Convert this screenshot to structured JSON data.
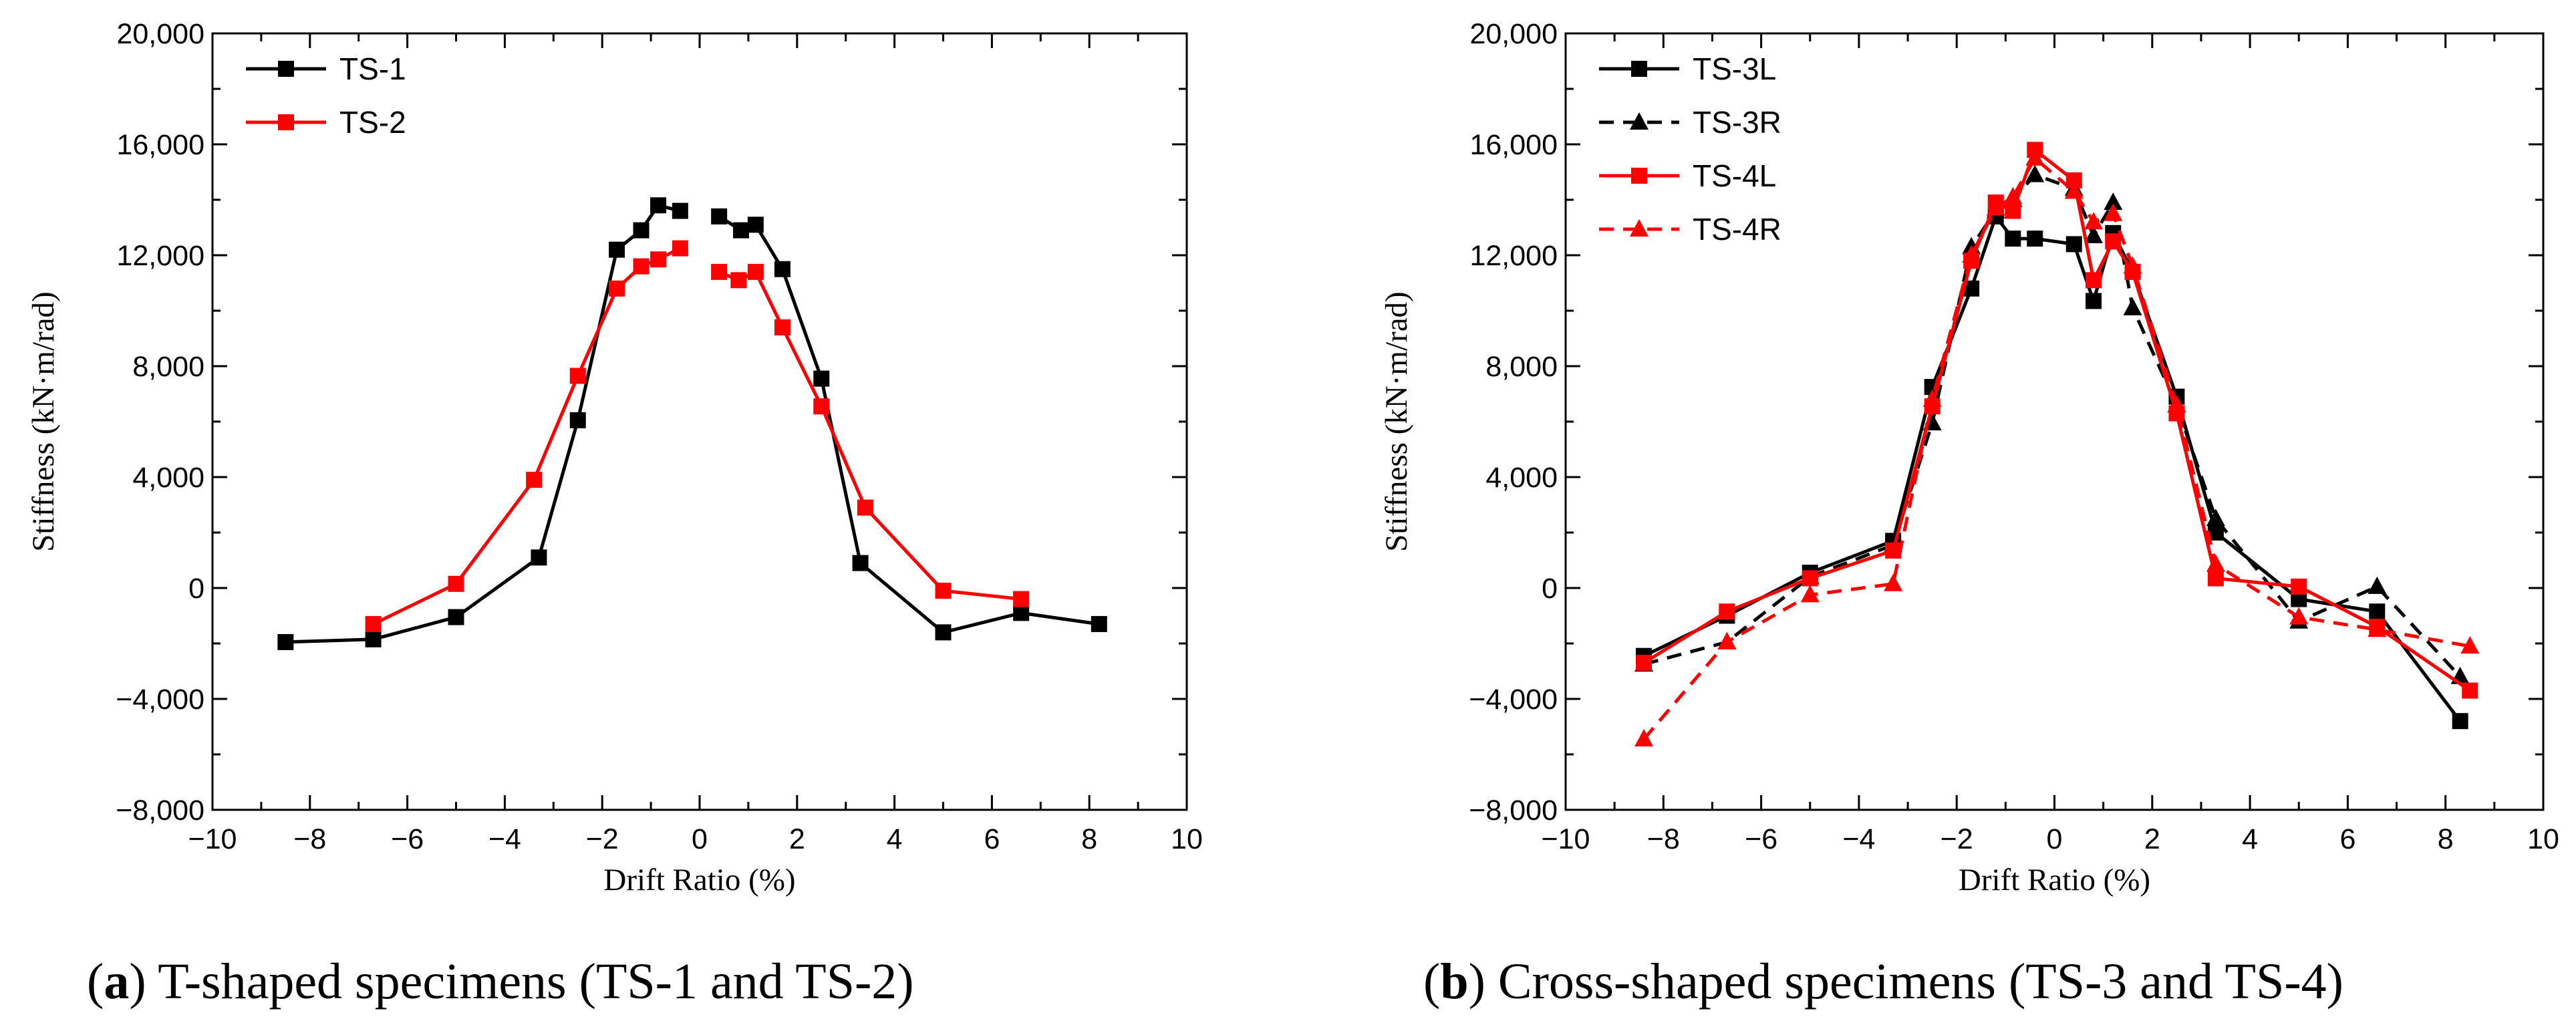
{
  "captions": [
    {
      "tag": "a",
      "text": " T-shaped specimens (TS-1 and TS-2)"
    },
    {
      "tag": "b",
      "text": " Cross-shaped specimens (TS-3 and TS-4)"
    }
  ],
  "chart_data": [
    {
      "type": "line",
      "xlabel": "Drift Ratio (%)",
      "ylabel": "Stiffness (kN·m/rad)",
      "xlim": [
        -10,
        10
      ],
      "ylim": [
        -8000,
        20000
      ],
      "x_ticks": [
        -10,
        -8,
        -6,
        -4,
        -2,
        0,
        2,
        4,
        6,
        8,
        10
      ],
      "y_ticks": [
        -8000,
        -4000,
        0,
        4000,
        8000,
        12000,
        16000,
        20000
      ],
      "y_tick_labels": [
        "−8,000",
        "−4,000",
        "0",
        "4,000",
        "8,000",
        "12,000",
        "16,000",
        "20,000"
      ],
      "x_tick_labels": [
        "−10",
        "−8",
        "−6",
        "−4",
        "−2",
        "0",
        "2",
        "4",
        "6",
        "8",
        "10"
      ],
      "grid": false,
      "legend_position": "top-left",
      "series": [
        {
          "name": "TS-1",
          "color": "#000000",
          "marker": "square",
          "dash": "solid",
          "segments": [
            [
              [
                -8.5,
                -1950
              ],
              [
                -6.7,
                -1850
              ],
              [
                -5.0,
                -1050
              ],
              [
                -3.3,
                1100
              ],
              [
                -2.5,
                6050
              ],
              [
                -1.7,
                12200
              ],
              [
                -1.2,
                12900
              ],
              [
                -0.85,
                13800
              ],
              [
                -0.4,
                13600
              ]
            ],
            [
              [
                0.4,
                13400
              ],
              [
                0.85,
                12900
              ],
              [
                1.15,
                13100
              ],
              [
                1.7,
                11500
              ],
              [
                2.5,
                7550
              ],
              [
                3.3,
                900
              ],
              [
                5.0,
                -1600
              ],
              [
                6.6,
                -900
              ],
              [
                8.2,
                -1300
              ]
            ]
          ]
        },
        {
          "name": "TS-2",
          "color": "#ff0000",
          "marker": "square",
          "dash": "solid",
          "segments": [
            [
              [
                -6.7,
                -1300
              ],
              [
                -5.0,
                150
              ],
              [
                -3.4,
                3900
              ],
              [
                -2.5,
                7650
              ],
              [
                -1.7,
                10800
              ],
              [
                -1.2,
                11600
              ],
              [
                -0.85,
                11850
              ],
              [
                -0.4,
                12250
              ]
            ],
            [
              [
                0.4,
                11400
              ],
              [
                0.8,
                11100
              ],
              [
                1.15,
                11400
              ],
              [
                1.7,
                9400
              ],
              [
                2.5,
                6550
              ],
              [
                3.4,
                2900
              ],
              [
                5.0,
                -100
              ],
              [
                6.6,
                -400
              ]
            ]
          ]
        }
      ]
    },
    {
      "type": "line",
      "xlabel": "Drift Ratio (%)",
      "ylabel": "Stiffness (kN·m/rad)",
      "xlim": [
        -10,
        10
      ],
      "ylim": [
        -8000,
        20000
      ],
      "x_ticks": [
        -10,
        -8,
        -6,
        -4,
        -2,
        0,
        2,
        4,
        6,
        8,
        10
      ],
      "y_ticks": [
        -8000,
        -4000,
        0,
        4000,
        8000,
        12000,
        16000,
        20000
      ],
      "y_tick_labels": [
        "−8,000",
        "−4,000",
        "0",
        "4,000",
        "8,000",
        "12,000",
        "16,000",
        "20,000"
      ],
      "x_tick_labels": [
        "−10",
        "−8",
        "−6",
        "−4",
        "−2",
        "0",
        "2",
        "4",
        "6",
        "8",
        "10"
      ],
      "grid": false,
      "legend_position": "top-left",
      "series": [
        {
          "name": "TS-3L",
          "color": "#000000",
          "marker": "square",
          "dash": "solid",
          "segments": [
            [
              [
                -8.4,
                -2450
              ],
              [
                -6.7,
                -1000
              ],
              [
                -5.0,
                550
              ],
              [
                -3.3,
                1700
              ],
              [
                -2.5,
                7250
              ],
              [
                -1.7,
                10800
              ],
              [
                -1.2,
                13400
              ],
              [
                -0.85,
                12600
              ],
              [
                -0.4,
                12600
              ],
              [
                0.4,
                12400
              ],
              [
                0.8,
                10350
              ],
              [
                1.2,
                12800
              ],
              [
                1.6,
                11400
              ],
              [
                2.5,
                6900
              ],
              [
                3.3,
                2000
              ],
              [
                5.0,
                -400
              ],
              [
                6.6,
                -850
              ],
              [
                8.3,
                -4800
              ]
            ]
          ]
        },
        {
          "name": "TS-3R",
          "color": "#000000",
          "marker": "triangle",
          "dash": "dashed",
          "segments": [
            [
              [
                -8.4,
                -2750
              ],
              [
                -6.7,
                -1950
              ],
              [
                -5.0,
                400
              ],
              [
                -3.3,
                1550
              ],
              [
                -2.5,
                5950
              ],
              [
                -1.7,
                12300
              ],
              [
                -1.2,
                13600
              ],
              [
                -0.85,
                14000
              ],
              [
                -0.4,
                14900
              ],
              [
                0.4,
                14400
              ],
              [
                0.8,
                12700
              ],
              [
                1.2,
                13900
              ],
              [
                1.6,
                10100
              ],
              [
                2.5,
                6600
              ],
              [
                3.3,
                2500
              ],
              [
                5.0,
                -1200
              ],
              [
                6.6,
                50
              ],
              [
                8.3,
                -3200
              ]
            ]
          ]
        },
        {
          "name": "TS-4L",
          "color": "#ff0000",
          "marker": "square",
          "dash": "solid",
          "segments": [
            [
              [
                -8.4,
                -2700
              ],
              [
                -6.7,
                -850
              ],
              [
                -5.0,
                350
              ],
              [
                -3.3,
                1350
              ],
              [
                -2.5,
                6550
              ],
              [
                -1.7,
                11800
              ],
              [
                -1.2,
                13900
              ],
              [
                -0.85,
                13600
              ],
              [
                -0.4,
                15800
              ],
              [
                0.4,
                14700
              ],
              [
                0.8,
                11100
              ],
              [
                1.2,
                12500
              ],
              [
                1.6,
                11400
              ],
              [
                2.5,
                6300
              ],
              [
                3.3,
                350
              ],
              [
                5.0,
                50
              ],
              [
                6.6,
                -1400
              ],
              [
                8.5,
                -3700
              ]
            ]
          ]
        },
        {
          "name": "TS-4R",
          "color": "#ff0000",
          "marker": "triangle",
          "dash": "dashed",
          "segments": [
            [
              [
                -8.4,
                -5450
              ],
              [
                -6.7,
                -1950
              ],
              [
                -5.0,
                -250
              ],
              [
                -3.3,
                150
              ],
              [
                -2.5,
                6800
              ],
              [
                -1.7,
                12000
              ],
              [
                -1.2,
                13700
              ],
              [
                -0.85,
                14100
              ],
              [
                -0.4,
                15500
              ],
              [
                0.4,
                14300
              ],
              [
                0.8,
                13200
              ],
              [
                1.2,
                13500
              ],
              [
                1.6,
                11600
              ],
              [
                2.5,
                6600
              ],
              [
                3.3,
                850
              ],
              [
                5.0,
                -1050
              ],
              [
                6.6,
                -1500
              ],
              [
                8.5,
                -2100
              ]
            ]
          ]
        }
      ]
    }
  ]
}
